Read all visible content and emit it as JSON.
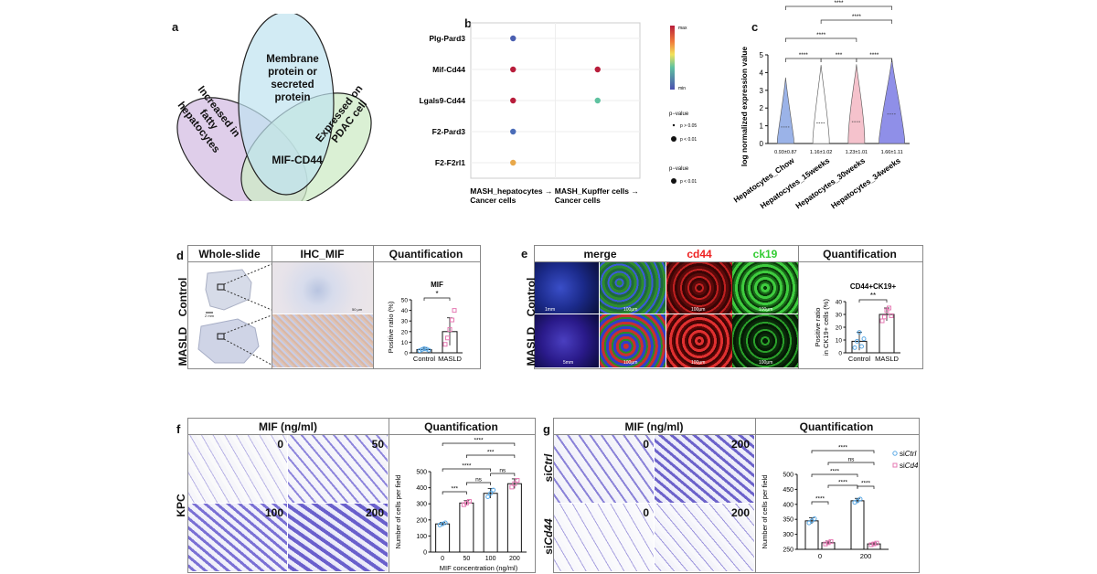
{
  "panel_a": {
    "label": "a",
    "ellipse_top": "Membrane protein or secreted protein",
    "ellipse_left": "Increased in fatty hepatocytes",
    "ellipse_right": "Expressed on PDAC cell",
    "intersection": "MIF-CD44"
  },
  "panel_b": {
    "label": "b",
    "legend_color_max": "max",
    "legend_color_min": "min",
    "legend_pvalue_title_1": "p−value",
    "legend_p1": "p > 0.05",
    "legend_p2": "p < 0.01",
    "legend_pvalue_title_2": "p−value",
    "legend_p3": "p < 0.01"
  },
  "panel_c": {
    "label": "c",
    "sig_top": "****",
    "sig_2": "****",
    "sig_3": "****",
    "sig_adj1": "****",
    "sig_adj2": "***",
    "sig_adj3": "****",
    "means": [
      "0.93±0.87",
      "1.16±1.02",
      "1.23±1.01",
      "1.66±1.11"
    ]
  },
  "panel_d": {
    "label": "d",
    "hdr_whole": "Whole-slide",
    "hdr_ihc": "IHC_MIF",
    "hdr_quant": "Quantification",
    "row_control": "Control",
    "row_masld": "MASLD",
    "scale_whole": "2 mm",
    "scale_ihc": "50 μm",
    "sig": "*"
  },
  "panel_e": {
    "label": "e",
    "hdr_merge": "merge",
    "hdr_cd44": "cd44",
    "hdr_ck19": "ck19",
    "hdr_quant": "Quantification",
    "row_control": "Control",
    "row_masld": "MASLD",
    "scale_1mm": "1mm",
    "scale_5mm": "5mm",
    "scale_100": "100μm",
    "sig": "**"
  },
  "panel_f": {
    "label": "f",
    "hdr_mif": "MIF (ng/ml)",
    "hdr_quant": "Quantification",
    "row_label": "KPC",
    "img_labels": [
      "0",
      "50",
      "100",
      "200"
    ],
    "sig": {
      "s1": "****",
      "s2": "***",
      "s3": "****",
      "s4": "***",
      "s5": "ns",
      "s6": "ns"
    }
  },
  "panel_g": {
    "label": "g",
    "hdr_mif": "MIF (ng/ml)",
    "hdr_quant": "Quantification",
    "row_ctrl_prefix": "si",
    "row_ctrl_gene": "Ctrl",
    "row_cd44_prefix": "si",
    "row_cd44_gene": "Cd44",
    "img_labels": [
      "0",
      "200",
      "0",
      "200"
    ],
    "legend_prefix": "si",
    "legend_ctrl": "Ctrl",
    "legend_cd44": "Cd44",
    "sig": {
      "s1": "****",
      "s2": "ns",
      "s3": "****",
      "s4": "****",
      "s5": "****",
      "s6": "****"
    }
  },
  "chart_data": [
    {
      "id": "b",
      "type": "scatter",
      "categories_y": [
        "Plg-Pard3",
        "Mif-Cd44",
        "Lgals9-Cd44",
        "F2-Pard3",
        "F2-F2rl1"
      ],
      "categories_x": [
        "MASH_hepatocytes → Cancer cells",
        "MASH_Kupffer cells → Cancer cells"
      ],
      "points": [
        {
          "x": "MASH_hepatocytes → Cancer cells",
          "y": "Plg-Pard3",
          "color": "#4a5fb0"
        },
        {
          "x": "MASH_hepatocytes → Cancer cells",
          "y": "Mif-Cd44",
          "color": "#b81d3b"
        },
        {
          "x": "MASH_hepatocytes → Cancer cells",
          "y": "Lgals9-Cd44",
          "color": "#b81d3b"
        },
        {
          "x": "MASH_hepatocytes → Cancer cells",
          "y": "F2-Pard3",
          "color": "#4a6cb8"
        },
        {
          "x": "MASH_hepatocytes → Cancer cells",
          "y": "F2-F2rl1",
          "color": "#e8a84a"
        },
        {
          "x": "MASH_Kupffer cells → Cancer cells",
          "y": "Mif-Cd44",
          "color": "#b81d3b"
        },
        {
          "x": "MASH_Kupffer cells → Cancer cells",
          "y": "Lgals9-Cd44",
          "color": "#5fc2a0"
        }
      ]
    },
    {
      "id": "c",
      "type": "violin",
      "ylabel": "log normalized expression value",
      "ylim": [
        0,
        5
      ],
      "yticks": [
        0,
        1,
        2,
        3,
        4,
        5
      ],
      "categories": [
        "Hepatocytes_Chow",
        "Hepatocytes_15weeks",
        "Hepatocytes_30weeks",
        "Hepatocytes_34weeks"
      ],
      "means": [
        0.93,
        1.16,
        1.23,
        1.66
      ],
      "sd": [
        0.87,
        1.02,
        1.01,
        1.11
      ],
      "colors": [
        "#9bb3e8",
        "#ffffff",
        "#f5c2cc",
        "#8f8fe8"
      ]
    },
    {
      "id": "d",
      "type": "bar",
      "title": "MIF",
      "ylabel": "Positive ratio (%)",
      "ylim": [
        0,
        50
      ],
      "yticks": [
        0,
        10,
        20,
        30,
        40,
        50
      ],
      "categories": [
        "Control",
        "MASLD"
      ],
      "values": [
        3,
        20
      ],
      "errors": [
        1.5,
        13
      ],
      "points": [
        [
          2,
          3,
          4,
          3.5,
          2.5
        ],
        [
          8,
          14,
          22,
          31,
          40
        ]
      ],
      "colors": [
        "#5aa9e6",
        "#e67ab3"
      ]
    },
    {
      "id": "e",
      "type": "bar",
      "title": "CD44+CK19+",
      "ylabel": "Positive ratio in CK19+ cells (%)",
      "ylim": [
        0,
        40
      ],
      "yticks": [
        0,
        10,
        20,
        30,
        40
      ],
      "categories": [
        "Control",
        "MASLD"
      ],
      "values": [
        9,
        30
      ],
      "errors": [
        7,
        5
      ],
      "points": [
        [
          4,
          9,
          16,
          5,
          11
        ],
        [
          25,
          28,
          33,
          35,
          29
        ]
      ],
      "colors": [
        "#5aa9e6",
        "#e67ab3"
      ]
    },
    {
      "id": "f",
      "type": "bar",
      "xlabel": "MIF concentration (ng/ml)",
      "ylabel": "Number of cells per field",
      "ylim": [
        0,
        500
      ],
      "yticks": [
        0,
        100,
        200,
        300,
        400,
        500
      ],
      "categories": [
        "0",
        "50",
        "100",
        "200"
      ],
      "values": [
        175,
        305,
        365,
        425
      ],
      "errors": [
        10,
        15,
        30,
        30
      ],
      "colors": [
        "#5aa9e6",
        "#e67ab3",
        "#5aa9e6",
        "#e67ab3"
      ]
    },
    {
      "id": "g",
      "type": "bar",
      "ylabel": "Number of cells per field",
      "ylim": [
        250,
        500
      ],
      "yticks": [
        250,
        300,
        350,
        400,
        450,
        500
      ],
      "categories": [
        "0",
        "200"
      ],
      "series": [
        {
          "name": "siCtrl",
          "values": [
            345,
            412
          ],
          "errors": [
            10,
            8
          ]
        },
        {
          "name": "siCd44",
          "values": [
            272,
            268
          ],
          "errors": [
            6,
            4
          ]
        }
      ],
      "colors": [
        "#5aa9e6",
        "#e67ab3"
      ]
    }
  ]
}
